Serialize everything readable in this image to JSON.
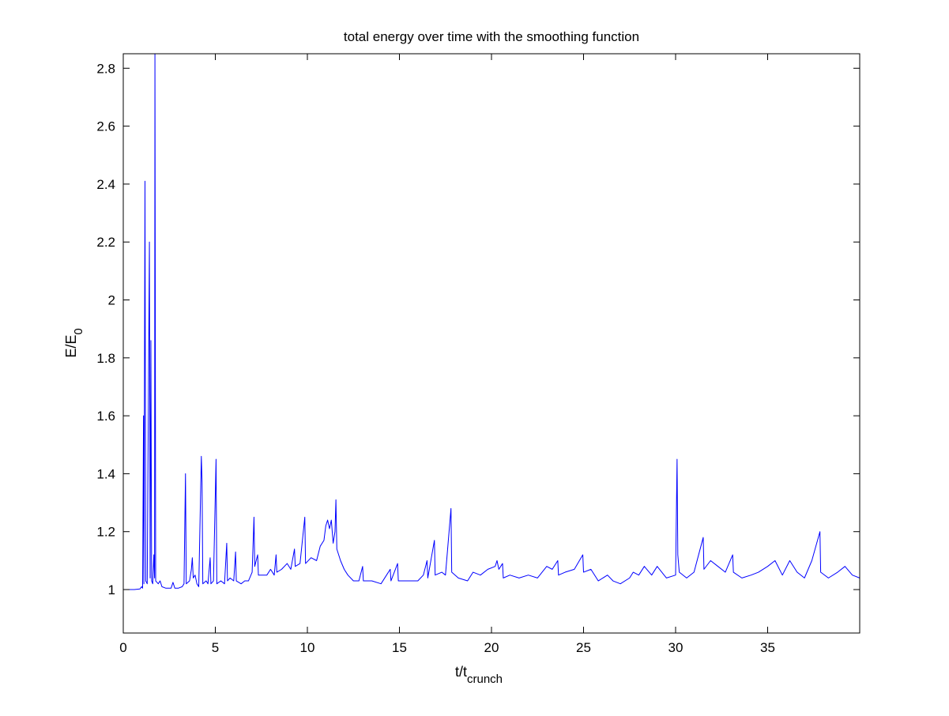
{
  "chart_data": {
    "type": "line",
    "title": "total energy over time with the smoothing function",
    "xlabel": {
      "main": "t/t",
      "sub": "crunch"
    },
    "ylabel": {
      "main": "E/E",
      "sub": "0"
    },
    "xlim": [
      0,
      40
    ],
    "ylim": [
      0.85,
      2.85
    ],
    "xticks": [
      0,
      5,
      10,
      15,
      20,
      25,
      30,
      35
    ],
    "yticks": [
      1,
      1.2,
      1.4,
      1.6,
      1.8,
      2,
      2.2,
      2.4,
      2.6,
      2.8
    ],
    "xtick_labels": [
      "0",
      "5",
      "10",
      "15",
      "20",
      "25",
      "30",
      "35"
    ],
    "ytick_labels": [
      "1",
      "1.2",
      "1.4",
      "1.6",
      "1.8",
      "2",
      "2.2",
      "2.4",
      "2.6",
      "2.8"
    ],
    "grid": false,
    "legend": "none",
    "series": [
      {
        "color": "#0000ff",
        "points": [
          [
            0,
            1.0
          ],
          [
            0.6,
            1.0
          ],
          [
            0.9,
            1.002
          ],
          [
            1.0,
            1.01
          ],
          [
            1.05,
            1.005
          ],
          [
            1.1,
            1.6
          ],
          [
            1.12,
            1.02
          ],
          [
            1.18,
            2.41
          ],
          [
            1.22,
            1.03
          ],
          [
            1.3,
            1.02
          ],
          [
            1.42,
            2.2
          ],
          [
            1.46,
            1.04
          ],
          [
            1.5,
            1.86
          ],
          [
            1.54,
            1.03
          ],
          [
            1.6,
            1.02
          ],
          [
            1.66,
            1.12
          ],
          [
            1.7,
            1.04
          ],
          [
            1.72,
            2.85
          ],
          [
            1.76,
            1.03
          ],
          [
            1.9,
            1.02
          ],
          [
            2.0,
            1.03
          ],
          [
            2.1,
            1.01
          ],
          [
            2.3,
            1.005
          ],
          [
            2.6,
            1.005
          ],
          [
            2.7,
            1.025
          ],
          [
            2.8,
            1.005
          ],
          [
            3.0,
            1.005
          ],
          [
            3.2,
            1.01
          ],
          [
            3.3,
            1.02
          ],
          [
            3.38,
            1.4
          ],
          [
            3.42,
            1.02
          ],
          [
            3.6,
            1.03
          ],
          [
            3.7,
            1.07
          ],
          [
            3.75,
            1.11
          ],
          [
            3.8,
            1.04
          ],
          [
            3.9,
            1.05
          ],
          [
            4.0,
            1.02
          ],
          [
            4.1,
            1.01
          ],
          [
            4.24,
            1.46
          ],
          [
            4.28,
            1.37
          ],
          [
            4.32,
            1.02
          ],
          [
            4.5,
            1.03
          ],
          [
            4.6,
            1.02
          ],
          [
            4.72,
            1.11
          ],
          [
            4.76,
            1.02
          ],
          [
            4.9,
            1.03
          ],
          [
            5.04,
            1.45
          ],
          [
            5.08,
            1.02
          ],
          [
            5.3,
            1.03
          ],
          [
            5.5,
            1.02
          ],
          [
            5.62,
            1.16
          ],
          [
            5.66,
            1.03
          ],
          [
            5.8,
            1.04
          ],
          [
            6.0,
            1.03
          ],
          [
            6.1,
            1.13
          ],
          [
            6.14,
            1.03
          ],
          [
            6.4,
            1.02
          ],
          [
            6.6,
            1.03
          ],
          [
            6.8,
            1.03
          ],
          [
            7.0,
            1.06
          ],
          [
            7.1,
            1.25
          ],
          [
            7.14,
            1.08
          ],
          [
            7.3,
            1.12
          ],
          [
            7.34,
            1.05
          ],
          [
            7.6,
            1.05
          ],
          [
            7.8,
            1.05
          ],
          [
            8.0,
            1.07
          ],
          [
            8.2,
            1.05
          ],
          [
            8.3,
            1.12
          ],
          [
            8.34,
            1.06
          ],
          [
            8.6,
            1.07
          ],
          [
            8.9,
            1.09
          ],
          [
            9.1,
            1.07
          ],
          [
            9.3,
            1.14
          ],
          [
            9.34,
            1.08
          ],
          [
            9.6,
            1.09
          ],
          [
            9.86,
            1.25
          ],
          [
            9.9,
            1.09
          ],
          [
            10.2,
            1.11
          ],
          [
            10.5,
            1.1
          ],
          [
            10.7,
            1.15
          ],
          [
            10.9,
            1.17
          ],
          [
            11.0,
            1.22
          ],
          [
            11.1,
            1.24
          ],
          [
            11.2,
            1.21
          ],
          [
            11.3,
            1.24
          ],
          [
            11.4,
            1.16
          ],
          [
            11.5,
            1.2
          ],
          [
            11.55,
            1.31
          ],
          [
            11.6,
            1.14
          ],
          [
            11.8,
            1.1
          ],
          [
            12.0,
            1.07
          ],
          [
            12.2,
            1.05
          ],
          [
            12.5,
            1.03
          ],
          [
            12.8,
            1.03
          ],
          [
            13.0,
            1.08
          ],
          [
            13.04,
            1.03
          ],
          [
            13.5,
            1.03
          ],
          [
            14.0,
            1.02
          ],
          [
            14.3,
            1.05
          ],
          [
            14.5,
            1.07
          ],
          [
            14.54,
            1.03
          ],
          [
            14.9,
            1.09
          ],
          [
            14.94,
            1.03
          ],
          [
            15.5,
            1.03
          ],
          [
            16.0,
            1.03
          ],
          [
            16.3,
            1.05
          ],
          [
            16.5,
            1.1
          ],
          [
            16.54,
            1.04
          ],
          [
            16.9,
            1.17
          ],
          [
            16.94,
            1.05
          ],
          [
            17.3,
            1.06
          ],
          [
            17.5,
            1.05
          ],
          [
            17.8,
            1.28
          ],
          [
            17.84,
            1.06
          ],
          [
            18.2,
            1.04
          ],
          [
            18.7,
            1.03
          ],
          [
            19.0,
            1.06
          ],
          [
            19.4,
            1.05
          ],
          [
            19.8,
            1.07
          ],
          [
            20.2,
            1.08
          ],
          [
            20.3,
            1.1
          ],
          [
            20.4,
            1.07
          ],
          [
            20.6,
            1.09
          ],
          [
            20.64,
            1.04
          ],
          [
            21.0,
            1.05
          ],
          [
            21.5,
            1.04
          ],
          [
            22.0,
            1.05
          ],
          [
            22.5,
            1.04
          ],
          [
            23.0,
            1.08
          ],
          [
            23.3,
            1.07
          ],
          [
            23.6,
            1.1
          ],
          [
            23.64,
            1.05
          ],
          [
            24.0,
            1.06
          ],
          [
            24.5,
            1.07
          ],
          [
            24.96,
            1.12
          ],
          [
            25.0,
            1.06
          ],
          [
            25.4,
            1.07
          ],
          [
            25.8,
            1.03
          ],
          [
            26.3,
            1.05
          ],
          [
            26.6,
            1.03
          ],
          [
            27.0,
            1.02
          ],
          [
            27.5,
            1.04
          ],
          [
            27.7,
            1.06
          ],
          [
            28.0,
            1.05
          ],
          [
            28.3,
            1.08
          ],
          [
            28.7,
            1.05
          ],
          [
            29.0,
            1.08
          ],
          [
            29.5,
            1.04
          ],
          [
            30.0,
            1.05
          ],
          [
            30.08,
            1.45
          ],
          [
            30.12,
            1.12
          ],
          [
            30.2,
            1.06
          ],
          [
            30.6,
            1.04
          ],
          [
            31.0,
            1.06
          ],
          [
            31.5,
            1.18
          ],
          [
            31.54,
            1.07
          ],
          [
            31.9,
            1.1
          ],
          [
            32.3,
            1.08
          ],
          [
            32.7,
            1.06
          ],
          [
            33.1,
            1.12
          ],
          [
            33.14,
            1.06
          ],
          [
            33.6,
            1.04
          ],
          [
            34.1,
            1.05
          ],
          [
            34.5,
            1.06
          ],
          [
            35.0,
            1.08
          ],
          [
            35.4,
            1.1
          ],
          [
            35.8,
            1.05
          ],
          [
            36.2,
            1.1
          ],
          [
            36.6,
            1.06
          ],
          [
            37.0,
            1.04
          ],
          [
            37.4,
            1.1
          ],
          [
            37.84,
            1.2
          ],
          [
            37.88,
            1.06
          ],
          [
            38.3,
            1.04
          ],
          [
            38.8,
            1.06
          ],
          [
            39.2,
            1.08
          ],
          [
            39.6,
            1.05
          ],
          [
            40.0,
            1.04
          ]
        ]
      }
    ]
  }
}
